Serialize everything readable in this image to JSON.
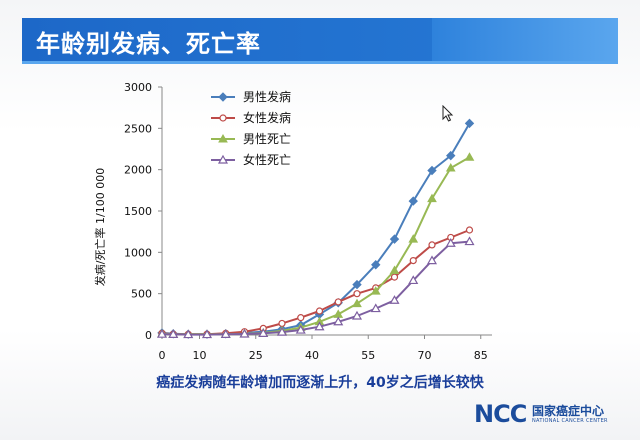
{
  "title": "年龄别发病、死亡率",
  "caption": "癌症发病随年龄增加而逐渐上升，40岁之后增长较快",
  "logo": {
    "mark": "NCC",
    "name_cn": "国家癌症中心",
    "name_en": "NATIONAL CANCER CENTER"
  },
  "chart_data": {
    "type": "line",
    "ylabel": "发病/死亡率  1/100 000",
    "xlabel": "",
    "x": [
      0,
      3,
      7,
      12,
      17,
      22,
      27,
      32,
      37,
      42,
      47,
      52,
      57,
      62,
      67,
      72,
      77,
      82,
      85
    ],
    "x_ticks": [
      0,
      10,
      25,
      40,
      55,
      70,
      85
    ],
    "x_tick_labels": [
      "0",
      "10",
      "25",
      "40",
      "55",
      "70",
      "85"
    ],
    "ylim": [
      0,
      3000
    ],
    "y_ticks": [
      0,
      500,
      1000,
      1500,
      2000,
      2500,
      3000
    ],
    "grid": false,
    "legend_position": "top-left",
    "series": [
      {
        "name": "男性发病",
        "color": "#4a7ebb",
        "marker": "diamond",
        "values": [
          25,
          15,
          10,
          10,
          15,
          25,
          40,
          70,
          120,
          250,
          390,
          610,
          850,
          1160,
          1620,
          1990,
          2170,
          2560,
          null
        ]
      },
      {
        "name": "女性发病",
        "color": "#be4b48",
        "marker": "circle",
        "values": [
          20,
          10,
          8,
          10,
          20,
          40,
          80,
          140,
          210,
          290,
          400,
          500,
          570,
          700,
          900,
          1090,
          1180,
          1270,
          null
        ]
      },
      {
        "name": "男性死亡",
        "color": "#98b954",
        "marker": "triangle",
        "values": [
          15,
          10,
          8,
          8,
          10,
          15,
          25,
          50,
          90,
          160,
          250,
          380,
          530,
          780,
          1160,
          1650,
          2020,
          2150,
          null
        ]
      },
      {
        "name": "女性死亡",
        "color": "#7d5fa0",
        "marker": "triangle-open",
        "values": [
          10,
          8,
          5,
          5,
          8,
          12,
          20,
          35,
          60,
          100,
          160,
          230,
          320,
          420,
          660,
          900,
          1110,
          1130,
          null
        ]
      }
    ]
  }
}
